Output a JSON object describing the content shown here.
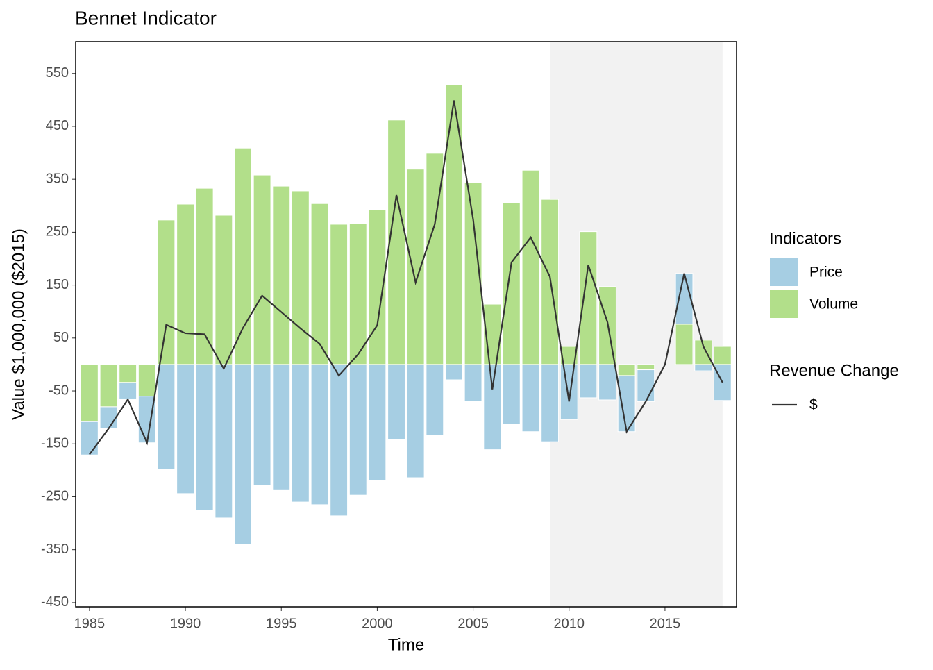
{
  "chart_data": {
    "type": "bar",
    "title": "Bennet Indicator",
    "x_label": "Time",
    "y_label": "Value $1,000,000 ($2015)",
    "legend_title": "Indicators",
    "x": [
      1985,
      1986,
      1987,
      1988,
      1989,
      1990,
      1991,
      1992,
      1993,
      1994,
      1995,
      1996,
      1997,
      1998,
      1999,
      2000,
      2001,
      2002,
      2003,
      2004,
      2005,
      2006,
      2007,
      2008,
      2009,
      2010,
      2011,
      2012,
      2013,
      2014,
      2015,
      2016,
      2017,
      2018
    ],
    "series": [
      {
        "name": "Price",
        "color": "#a6cee3",
        "values": [
          -63,
          -41,
          -31,
          -88,
          -198,
          -244,
          -276,
          -290,
          -340,
          -228,
          -238,
          -260,
          -265,
          -286,
          -247,
          -219,
          -142,
          -214,
          -134,
          -29,
          -70,
          -161,
          -113,
          -127,
          -146,
          -104,
          -63,
          -67,
          -106,
          -60,
          0,
          96,
          -12,
          -68
        ]
      },
      {
        "name": "Volume",
        "color": "#b2df8a",
        "values": [
          -108,
          -80,
          -34,
          -60,
          273,
          303,
          333,
          282,
          409,
          358,
          337,
          328,
          304,
          265,
          266,
          293,
          462,
          369,
          399,
          528,
          344,
          114,
          306,
          367,
          312,
          34,
          251,
          147,
          -21,
          -10,
          0,
          76,
          46,
          34
        ]
      }
    ],
    "line": {
      "legend_title": "Revenue Change",
      "name": "$",
      "color": "#333333",
      "values": [
        -170,
        -121,
        -66,
        -148,
        75,
        59,
        57,
        -8,
        69,
        130,
        99,
        68,
        39,
        -21,
        19,
        74,
        320,
        155,
        265,
        499,
        274,
        -47,
        193,
        240,
        166,
        -70,
        188,
        80,
        -127,
        -70,
        0,
        172,
        34,
        -34
      ]
    },
    "shaded_xrange": [
      2009,
      2018
    ],
    "xlim": [
      1984.28,
      2018.73
    ],
    "ylim": [
      -458,
      610
    ],
    "xticks": [
      1985,
      1990,
      1995,
      2000,
      2005,
      2010,
      2015
    ],
    "yticks": [
      -450,
      -350,
      -250,
      -150,
      -50,
      50,
      150,
      250,
      350,
      450,
      550
    ]
  }
}
